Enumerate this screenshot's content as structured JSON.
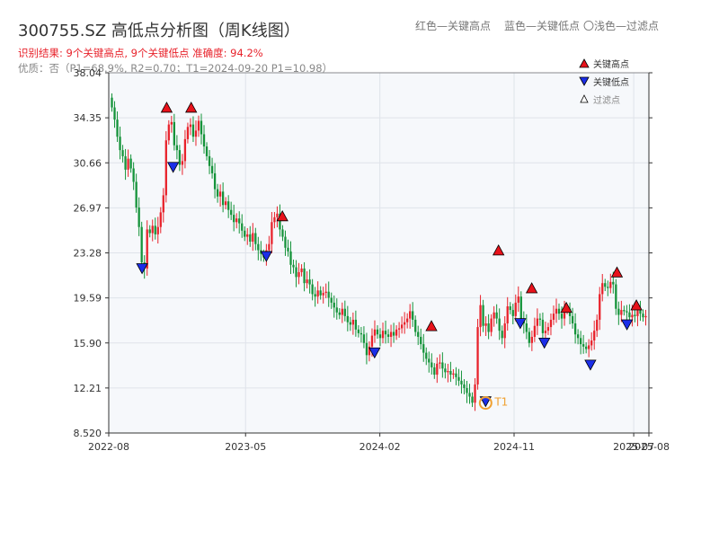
{
  "header": {
    "title": "300755.SZ 高低点分析图（周K线图）",
    "result_line": "识别结果: 9个关键高点, 9个关键低点  准确度: 94.2%",
    "quality_line": "优质：否（P1=68.9%, R2=0.70；T1=2024-09-20 P1=10.98）"
  },
  "top_legend": {
    "red_label": "红色—关键高点",
    "blue_label": "蓝色—关键低点",
    "filtered_label": "〇浅色—过滤点"
  },
  "legend": {
    "high_label": "关键高点",
    "low_label": "关键低点",
    "filtered_label": "过滤点"
  },
  "colors": {
    "up": "#e8222b",
    "down": "#15933a",
    "high_marker": "#e8121b",
    "low_marker": "#1b2ee8",
    "t1_ring": "#f0a030",
    "plot_bg": "#f6f8fb",
    "grid": "#dfe3ea"
  },
  "chart_data": {
    "type": "candlestick",
    "title": "300755.SZ 高低点分析图（周K线图）",
    "ylim": [
      8.52,
      38.04
    ],
    "y_ticks": [
      38.04,
      34.35,
      30.66,
      26.97,
      23.28,
      19.59,
      15.9,
      12.21,
      8.52
    ],
    "y_tick_labels": [
      "38.04",
      "34.35",
      "30.66",
      "26.97",
      "23.28",
      "19.59",
      "15.90",
      "12.21",
      "8.520"
    ],
    "x_ticks": [
      {
        "label": "2022-08",
        "pos": 0.0
      },
      {
        "label": "2023-05",
        "pos": 0.2533
      },
      {
        "label": "2024-02",
        "pos": 0.5019
      },
      {
        "label": "2024-11",
        "pos": 0.7504
      },
      {
        "label": "2025-07",
        "pos": 0.9719
      },
      {
        "label": "2025-08",
        "pos": 1.0
      }
    ],
    "t1": {
      "label": "T1",
      "date": "2024-09-20",
      "value": 10.98
    },
    "weekly_closes": [
      35.2,
      34.2,
      32.8,
      31.7,
      31.2,
      30.1,
      31.0,
      30.2,
      29.1,
      27.0,
      25.4,
      22.5,
      22.0,
      25.2,
      24.9,
      25.5,
      24.8,
      25.4,
      26.6,
      28.0,
      32.5,
      33.8,
      34.0,
      32.1,
      31.7,
      30.5,
      30.8,
      32.6,
      33.6,
      33.8,
      32.8,
      33.3,
      34.1,
      33.0,
      32.0,
      31.2,
      30.4,
      29.8,
      28.5,
      27.9,
      28.3,
      27.2,
      27.5,
      26.8,
      26.4,
      25.8,
      26.1,
      25.7,
      25.1,
      24.6,
      24.8,
      24.2,
      24.9,
      24.0,
      23.5,
      23.2,
      22.9,
      23.5,
      24.0,
      25.8,
      26.2,
      26.5,
      25.2,
      24.6,
      23.7,
      23.4,
      22.3,
      22.1,
      21.3,
      21.7,
      22.0,
      20.8,
      21.1,
      20.7,
      19.9,
      19.7,
      20.2,
      19.8,
      20.0,
      20.1,
      19.6,
      19.2,
      18.8,
      18.4,
      18.2,
      18.7,
      18.1,
      17.6,
      17.4,
      17.8,
      17.0,
      16.7,
      16.6,
      15.9,
      14.9,
      15.6,
      16.5,
      17.0,
      16.6,
      16.3,
      16.9,
      16.6,
      16.4,
      16.8,
      16.5,
      17.0,
      17.1,
      17.4,
      17.6,
      17.9,
      18.5,
      17.8,
      16.8,
      16.4,
      15.8,
      15.1,
      14.6,
      14.3,
      13.9,
      13.3,
      14.2,
      14.3,
      13.8,
      13.5,
      13.6,
      13.3,
      13.4,
      13.1,
      12.8,
      12.5,
      12.2,
      11.8,
      11.5,
      11.0,
      12.5,
      17.2,
      19.0,
      17.3,
      17.5,
      16.8,
      17.9,
      18.4,
      17.9,
      16.9,
      16.3,
      17.5,
      18.9,
      18.6,
      18.1,
      19.2,
      19.7,
      17.9,
      17.5,
      16.8,
      15.9,
      16.4,
      17.3,
      17.9,
      17.8,
      16.7,
      16.9,
      17.2,
      17.8,
      18.3,
      18.7,
      18.3,
      17.9,
      18.6,
      18.7,
      18.1,
      17.5,
      16.6,
      16.3,
      15.8,
      15.6,
      15.4,
      15.7,
      16.1,
      16.9,
      17.8,
      19.9,
      20.8,
      20.5,
      20.4,
      20.9,
      20.7,
      18.7,
      18.2,
      18.6,
      18.5,
      18.4,
      18.0,
      18.2,
      18.1,
      18.6,
      18.3,
      18.0,
      18.1
    ],
    "key_highs": [
      {
        "label": "关键高点",
        "pos": 0.1072,
        "value": 35.1
      },
      {
        "label": "关键高点",
        "pos": 0.1526,
        "value": 35.1
      },
      {
        "label": "关键高点",
        "pos": 0.3214,
        "value": 26.2
      },
      {
        "label": "关键高点",
        "pos": 0.5974,
        "value": 17.2
      },
      {
        "label": "关键高点",
        "pos": 0.7216,
        "value": 23.4
      },
      {
        "label": "关键高点",
        "pos": 0.7831,
        "value": 20.3
      },
      {
        "label": "关键高点",
        "pos": 0.8471,
        "value": 18.7
      },
      {
        "label": "关键高点",
        "pos": 0.9409,
        "value": 21.6
      },
      {
        "label": "关键高点",
        "pos": 0.9768,
        "value": 18.9
      }
    ],
    "key_lows": [
      {
        "label": "关键低点",
        "pos": 0.0617,
        "value": 22.1
      },
      {
        "label": "关键低点",
        "pos": 0.1192,
        "value": 30.4
      },
      {
        "label": "关键低点",
        "pos": 0.2918,
        "value": 23.1
      },
      {
        "label": "关键低点",
        "pos": 0.4922,
        "value": 15.2
      },
      {
        "label": "关键低点",
        "pos": 0.6977,
        "value": 11.2
      },
      {
        "label": "关键低点",
        "pos": 0.7618,
        "value": 17.6
      },
      {
        "label": "关键低点",
        "pos": 0.8065,
        "value": 16.0
      },
      {
        "label": "关键低点",
        "pos": 0.8917,
        "value": 14.2
      },
      {
        "label": "关键低点",
        "pos": 0.9594,
        "value": 17.5
      }
    ]
  }
}
